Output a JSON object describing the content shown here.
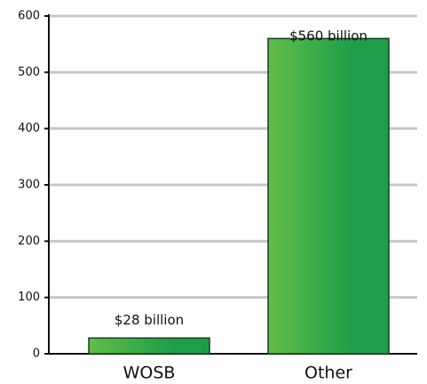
{
  "chart_data": {
    "type": "bar",
    "categories": [
      "WOSB",
      "Other"
    ],
    "values": [
      28,
      560
    ],
    "value_labels": [
      "$28 billion",
      "$560 billion"
    ],
    "color": "#1e9e48",
    "ylim": [
      0,
      600
    ],
    "yticks": [
      0,
      100,
      200,
      300,
      400,
      500,
      600
    ],
    "grid": true
  }
}
